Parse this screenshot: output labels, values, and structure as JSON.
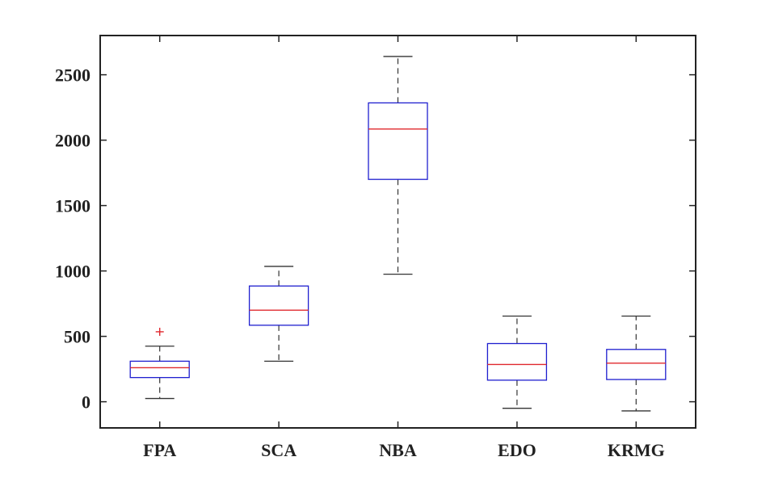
{
  "chart_data": {
    "type": "box",
    "title": "",
    "xlabel": "",
    "ylabel": "",
    "ylim": [
      -200,
      2800
    ],
    "yticks": [
      0,
      500,
      1000,
      1500,
      2000,
      2500
    ],
    "ytick_labels": [
      "0",
      "500",
      "1000",
      "1500",
      "2000",
      "2500"
    ],
    "categories": [
      "FPA",
      "SCA",
      "NBA",
      "EDO",
      "KRMG"
    ],
    "boxes": [
      {
        "category": "FPA",
        "whisker_low": 25,
        "q1": 185,
        "median": 260,
        "q3": 310,
        "whisker_high": 425,
        "outliers": [
          535
        ]
      },
      {
        "category": "SCA",
        "whisker_low": 310,
        "q1": 585,
        "median": 700,
        "q3": 885,
        "whisker_high": 1035,
        "outliers": []
      },
      {
        "category": "NBA",
        "whisker_low": 975,
        "q1": 1700,
        "median": 2085,
        "q3": 2285,
        "whisker_high": 2640,
        "outliers": []
      },
      {
        "category": "EDO",
        "whisker_low": -50,
        "q1": 165,
        "median": 285,
        "q3": 445,
        "whisker_high": 655,
        "outliers": []
      },
      {
        "category": "KRMG",
        "whisker_low": -70,
        "q1": 170,
        "median": 295,
        "q3": 400,
        "whisker_high": 655,
        "outliers": []
      }
    ],
    "grid": false,
    "colors": {
      "box": "#1f1fcf",
      "median": "#e0282e",
      "whisker": "#333333",
      "outlier": "#e0282e",
      "axis": "#222222"
    }
  }
}
